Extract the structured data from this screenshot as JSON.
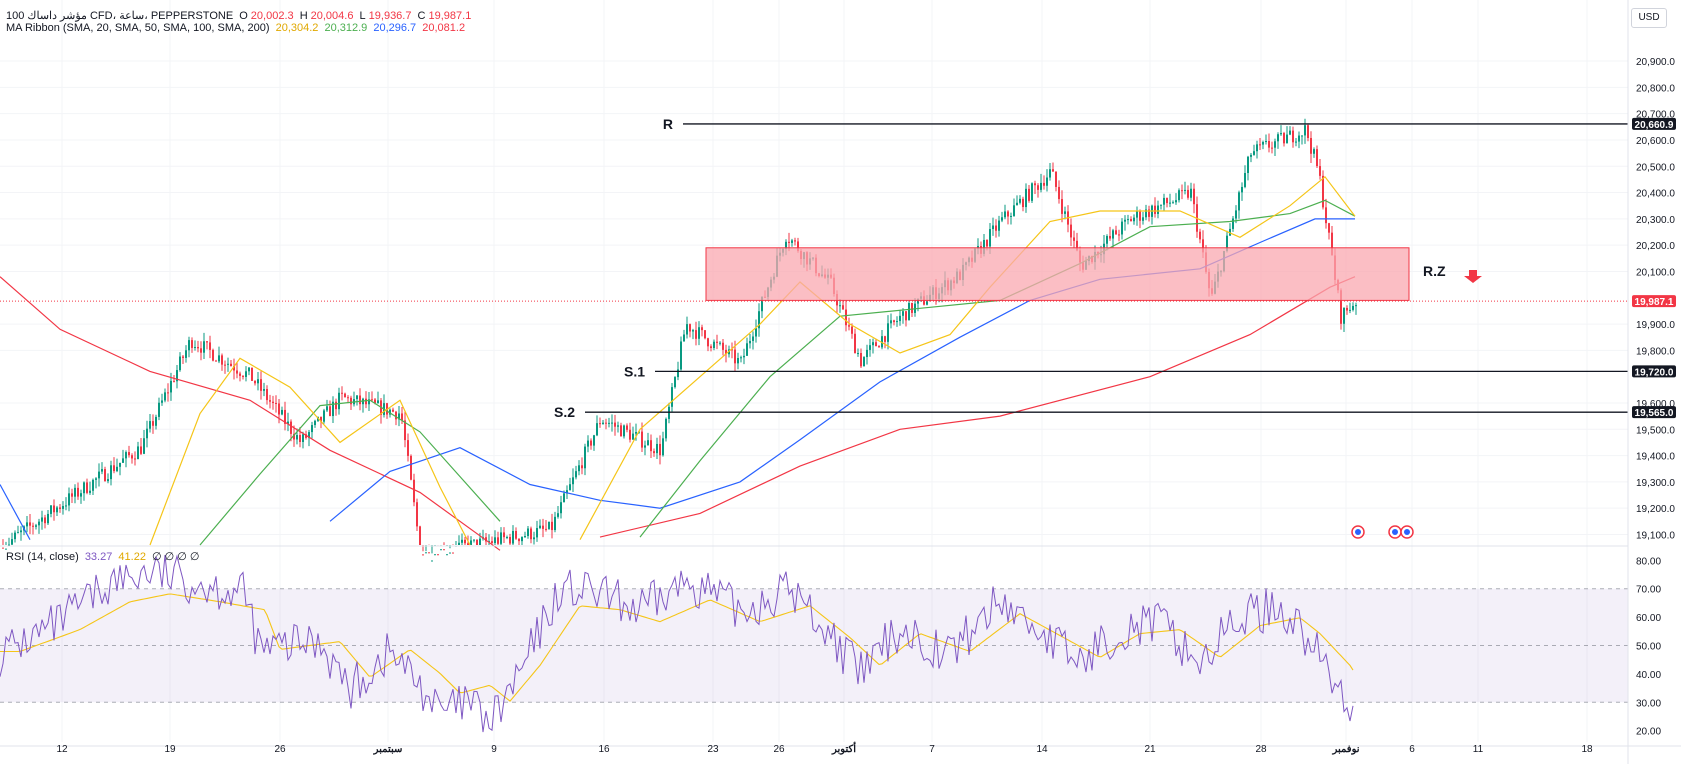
{
  "header": {
    "symbol": "مؤشر داساك 100 CFD، ساعة، PEPPERSTONE",
    "o_label": "O",
    "o_value": "20,002.3",
    "h_label": "H",
    "h_value": "20,004.6",
    "l_label": "L",
    "l_value": "19,936.7",
    "c_label": "C",
    "c_value": "19,987.1",
    "ma_label": "MA Ribbon (SMA, 20, SMA, 50, SMA, 100, SMA, 200)",
    "ma_values": [
      "20,304.2",
      "20,312.9",
      "20,296.7",
      "20,081.2"
    ],
    "rsi_label": "RSI (14, close)",
    "rsi_values": [
      "33.27",
      "41.22"
    ],
    "rsi_extra": "∅ ∅ ∅ ∅"
  },
  "currency_button": "USD",
  "colors": {
    "ma20": "#f5c518",
    "ma50": "#4caf50",
    "ma100": "#2962ff",
    "ma200": "#f23645",
    "rsi": "#7e57c2",
    "rsi_ma": "#f5c518",
    "zone_fill": "#f9a8b0",
    "zone_border": "#f23645",
    "candle_up": "#089981",
    "candle_down": "#f23645",
    "current_price": "#f23645"
  },
  "chart_data": {
    "type": "candlestick",
    "timeframe": "1h",
    "x_labels": [
      "12",
      "19",
      "26",
      "سبتمبر",
      "9",
      "16",
      "23",
      "26",
      "أكتوبر",
      "7",
      "14",
      "21",
      "28",
      "نوفمبر",
      "6",
      "11",
      "18"
    ],
    "y_ticks": [
      "20,900.0",
      "20,800.0",
      "20,700.0",
      "20,600.0",
      "20,500.0",
      "20,400.0",
      "20,300.0",
      "20,200.0",
      "20,100.0",
      "19,900.0",
      "19,800.0",
      "19,600.0",
      "19,500.0",
      "19,400.0",
      "19,300.0",
      "19,200.0",
      "19,100.0"
    ],
    "y_range": [
      19060,
      20980
    ],
    "current_price": {
      "value": 19987.1,
      "label": "19,987.1"
    },
    "levels": [
      {
        "name": "R",
        "value": 20660.9,
        "label": "20,660.9"
      },
      {
        "name": "S.1",
        "value": 19720.0,
        "label": "19,720.0"
      },
      {
        "name": "S.2",
        "value": 19565.0,
        "label": "19,565.0"
      }
    ],
    "zone": {
      "name": "R.Z",
      "from": 19990,
      "to": 20190
    },
    "rsi": {
      "y_ticks": [
        "80.00",
        "70.00",
        "60.00",
        "50.00",
        "40.00",
        "30.00",
        "20.00"
      ],
      "range": [
        16,
        84
      ],
      "band": [
        30,
        70
      ],
      "midline": 50
    }
  }
}
